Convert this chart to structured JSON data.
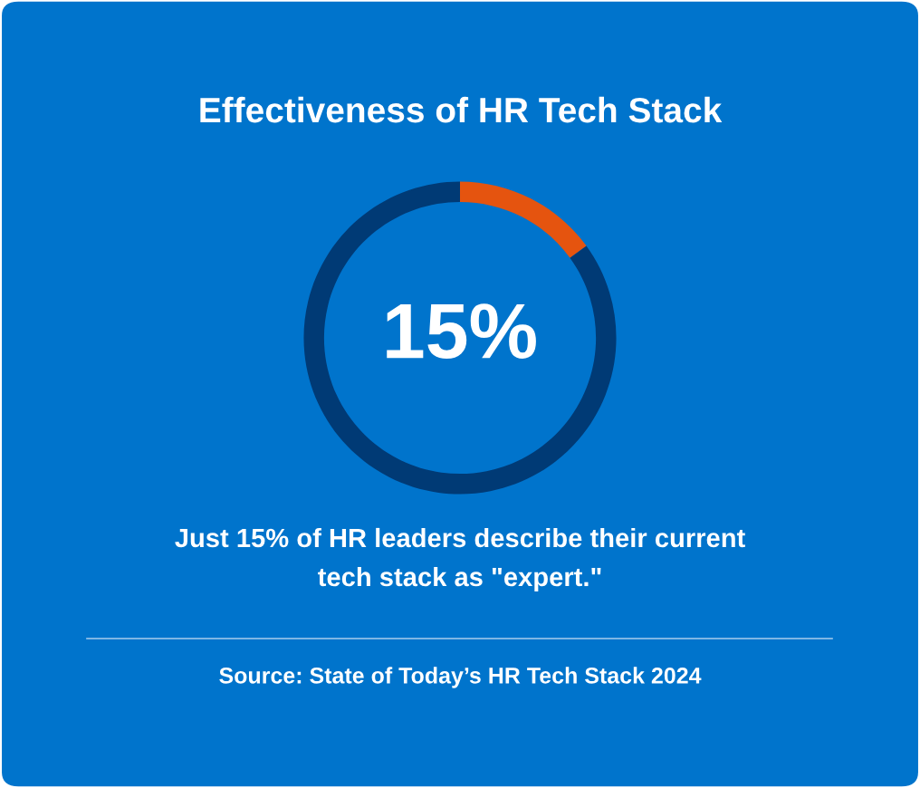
{
  "chart_data": {
    "type": "donut",
    "title": "Effectiveness of HR Tech Stack",
    "categories": [
      null,
      null
    ],
    "values": [
      15,
      85
    ],
    "colors": [
      "#e5540f",
      "#003a75"
    ],
    "annotations": [
      "15%",
      "Just 15% of HR leaders describe their current tech stack as \"expert.\"",
      "Source: State of Today’s HR Tech Stack 2024"
    ]
  }
}
